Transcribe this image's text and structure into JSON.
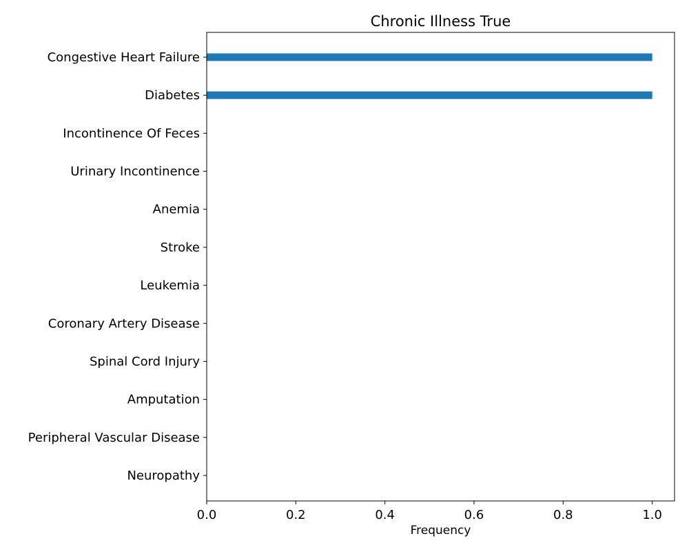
{
  "chart_data": {
    "type": "bar",
    "orientation": "horizontal",
    "title": "Chronic Illness True",
    "xlabel": "Frequency",
    "ylabel": "",
    "categories": [
      "Congestive Heart Failure",
      "Diabetes",
      "Incontinence Of Feces",
      "Urinary Incontinence",
      "Anemia",
      "Stroke",
      "Leukemia",
      "Coronary Artery Disease",
      "Spinal Cord Injury",
      "Amputation",
      "Peripheral Vascular Disease",
      "Neuropathy"
    ],
    "values": [
      1,
      1,
      0,
      0,
      0,
      0,
      0,
      0,
      0,
      0,
      0,
      0
    ],
    "xlim": [
      0,
      1.05
    ],
    "xticks": [
      0.0,
      0.2,
      0.4,
      0.6,
      0.8,
      1.0
    ],
    "xtick_labels": [
      "0.0",
      "0.2",
      "0.4",
      "0.6",
      "0.8",
      "1.0"
    ],
    "grid": false,
    "legend": "none",
    "bar_color": "#1f77b4"
  }
}
